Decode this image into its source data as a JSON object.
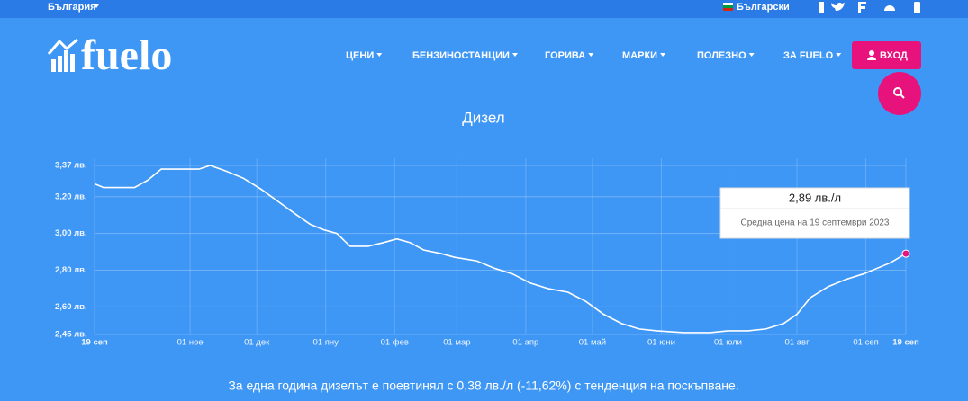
{
  "topbar": {
    "country": "България",
    "language": "Български"
  },
  "header": {
    "logo": "fuelo",
    "nav": [
      "ЦЕНИ",
      "БЕНЗИНОСТАНЦИИ",
      "ГОРИВА",
      "МАРКИ",
      "ПОЛЕЗНО",
      "ЗА FUELO"
    ],
    "login": "ВХОД"
  },
  "chart_data": {
    "type": "line",
    "title": "Дизел",
    "x": [
      0,
      4,
      10,
      18,
      24,
      30,
      38,
      47,
      52,
      59,
      67,
      75,
      83,
      91,
      97,
      103,
      109,
      115,
      123,
      130,
      136,
      142,
      148,
      156,
      162,
      172,
      180,
      188,
      196,
      204,
      213,
      221,
      229,
      237,
      245,
      253,
      265,
      277,
      285,
      294,
      302,
      310,
      316,
      322,
      330,
      338,
      346,
      352,
      358,
      365
    ],
    "series": [
      {
        "name": "Дизел",
        "color": "#ffffff",
        "values": [
          3.27,
          3.25,
          3.25,
          3.25,
          3.29,
          3.35,
          3.35,
          3.35,
          3.37,
          3.34,
          3.3,
          3.24,
          3.17,
          3.1,
          3.05,
          3.02,
          3.0,
          2.93,
          2.93,
          2.95,
          2.97,
          2.95,
          2.91,
          2.89,
          2.87,
          2.85,
          2.81,
          2.78,
          2.73,
          2.7,
          2.68,
          2.63,
          2.56,
          2.51,
          2.48,
          2.47,
          2.46,
          2.46,
          2.47,
          2.47,
          2.48,
          2.51,
          2.56,
          2.65,
          2.71,
          2.75,
          2.78,
          2.81,
          2.84,
          2.89
        ]
      }
    ],
    "xlim": [
      0,
      365
    ],
    "xticks": [
      {
        "value": 0,
        "label": "19 сеп"
      },
      {
        "value": 43,
        "label": "01 ное"
      },
      {
        "value": 73,
        "label": "01 дек"
      },
      {
        "value": 104,
        "label": "01 яну"
      },
      {
        "value": 135,
        "label": "01 фев"
      },
      {
        "value": 163,
        "label": "01 мар"
      },
      {
        "value": 194,
        "label": "01 апр"
      },
      {
        "value": 224,
        "label": "01 май"
      },
      {
        "value": 255,
        "label": "01 юни"
      },
      {
        "value": 285,
        "label": "01 юли"
      },
      {
        "value": 316,
        "label": "01 авг"
      },
      {
        "value": 347,
        "label": "01 сеп"
      },
      {
        "value": 365,
        "label": "19 сеп"
      }
    ],
    "ylim": [
      2.45,
      3.37
    ],
    "yticks": [
      {
        "value": 2.45,
        "label": "2,45 лв."
      },
      {
        "value": 2.6,
        "label": "2,60 лв."
      },
      {
        "value": 2.8,
        "label": "2,80 лв."
      },
      {
        "value": 3.0,
        "label": "3,00 лв."
      },
      {
        "value": 3.2,
        "label": "3,20 лв."
      },
      {
        "value": 3.37,
        "label": "3,37 лв."
      }
    ],
    "grid": true,
    "marker_color": "#e8127c",
    "tooltip": {
      "title": "2,89 лв./л",
      "subtitle": "Средна цена на 19 септември 2023"
    }
  },
  "summary": "За една година дизелът е поевтинял с 0,38 лв./л (-11,62%) с тенденция на поскъпване."
}
